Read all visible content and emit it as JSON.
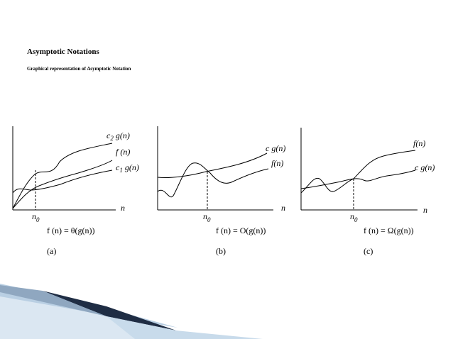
{
  "header": {
    "title": "Asymptotic Notations",
    "subtitle": "Graphical representation of Asymptotic Notation"
  },
  "panels": [
    {
      "upper_label": {
        "c": "c",
        "sub": "2",
        "rest": " g(n)"
      },
      "middle_label": "f (n)",
      "lower_label": {
        "c": "c",
        "sub": "1",
        "rest": " g(n)"
      },
      "n0": {
        "n": "n",
        "sub": "0"
      },
      "axis_n": "n",
      "formula": "f (n) = θ(g(n))",
      "caption": "(a)"
    },
    {
      "upper_label": "c g(n)",
      "middle_label": "f(n)",
      "n0": {
        "n": "n",
        "sub": "0"
      },
      "axis_n": "n",
      "formula": "f (n) = O(g(n))",
      "caption": "(b)"
    },
    {
      "upper_label": "f(n)",
      "middle_label": "c g(n)",
      "n0": {
        "n": "n",
        "sub": "0"
      },
      "axis_n": "n",
      "formula": "f (n) = Ω(g(n))",
      "caption": "(c)"
    }
  ],
  "colors": {
    "ink": "#000000",
    "ribbon_dark": "#1f2d44",
    "ribbon_light": "#b9cfe3"
  }
}
